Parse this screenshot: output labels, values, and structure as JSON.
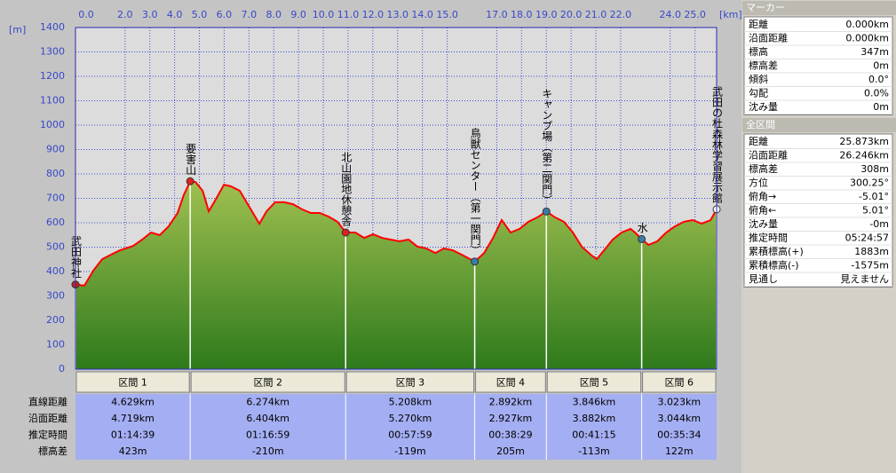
{
  "chart_data": {
    "type": "area",
    "x_label": "[km]",
    "y_label": "[m]",
    "color": "#ff0000",
    "grid": true,
    "x": [
      0,
      0.36,
      0.72,
      1.08,
      1.43,
      1.79,
      2.33,
      2.69,
      3.05,
      3.4,
      3.76,
      4.12,
      4.37,
      4.629,
      4.84,
      5.13,
      5.38,
      5.66,
      5.99,
      6.27,
      6.63,
      6.99,
      7.42,
      7.71,
      8.06,
      8.42,
      8.78,
      9.14,
      9.5,
      9.86,
      10.22,
      10.57,
      10.903,
      11.29,
      11.65,
      12.01,
      12.37,
      12.72,
      13.08,
      13.44,
      13.8,
      14.16,
      14.52,
      14.87,
      15.23,
      15.59,
      16.111,
      16.49,
      16.85,
      17.2,
      17.56,
      17.92,
      18.28,
      18.64,
      19.003,
      19.35,
      19.71,
      20.07,
      20.43,
      20.79,
      21.04,
      21.33,
      21.68,
      22.04,
      22.4,
      22.58,
      22.849,
      23.12,
      23.48,
      23.84,
      24.19,
      24.55,
      24.91,
      25.27,
      25.63,
      25.873
    ],
    "values": [
      347,
      342,
      404,
      451,
      469,
      487,
      505,
      531,
      560,
      549,
      585,
      640,
      713,
      770,
      767,
      731,
      647,
      695,
      756,
      749,
      731,
      669,
      596,
      647,
      684,
      684,
      676,
      655,
      640,
      640,
      625,
      604,
      560,
      560,
      538,
      553,
      538,
      531,
      524,
      531,
      502,
      495,
      476,
      495,
      487,
      469,
      441,
      476,
      538,
      611,
      560,
      575,
      604,
      622,
      646,
      622,
      604,
      560,
      502,
      469,
      451,
      487,
      531,
      560,
      575,
      560,
      533,
      509,
      524,
      560,
      585,
      604,
      611,
      596,
      611,
      655
    ],
    "xlim": [
      0,
      25.873
    ],
    "ylim": [
      0,
      1400
    ],
    "xticks": [
      {
        "value": 0,
        "label": "0.0"
      },
      {
        "value": 2,
        "label": "2.0"
      },
      {
        "value": 3,
        "label": "3.0"
      },
      {
        "value": 4,
        "label": "4.0"
      },
      {
        "value": 5,
        "label": "5.0"
      },
      {
        "value": 6,
        "label": "6.0"
      },
      {
        "value": 7,
        "label": "7.0"
      },
      {
        "value": 8,
        "label": "8.0"
      },
      {
        "value": 9,
        "label": "9.0"
      },
      {
        "value": 10,
        "label": "10.0"
      },
      {
        "value": 11,
        "label": "11.0"
      },
      {
        "value": 12,
        "label": "12.0"
      },
      {
        "value": 13,
        "label": "13.0"
      },
      {
        "value": 14,
        "label": "14.0"
      },
      {
        "value": 15,
        "label": "15.0"
      },
      {
        "value": 17,
        "label": "17.0"
      },
      {
        "value": 18,
        "label": "18.0"
      },
      {
        "value": 19,
        "label": "19.0"
      },
      {
        "value": 20,
        "label": "20.0"
      },
      {
        "value": 21,
        "label": "21.0"
      },
      {
        "value": 22,
        "label": "22.0"
      },
      {
        "value": 24,
        "label": "24.0"
      },
      {
        "value": 25,
        "label": "25.0"
      }
    ],
    "yticks": [
      0,
      100,
      200,
      300,
      400,
      500,
      600,
      700,
      800,
      900,
      1000,
      1100,
      1200,
      1300,
      1400
    ],
    "markers": [
      {
        "label": "武田神社",
        "x": 0,
        "elevation": 347,
        "color": "#c02020"
      },
      {
        "label": "要害山",
        "x": 4.629,
        "elevation": 770,
        "color": "#e02020"
      },
      {
        "label": "北山園地休憩舎",
        "x": 10.903,
        "elevation": 560,
        "color": "#e02020"
      },
      {
        "label": "鳥獣センター（第一関門）",
        "x": 16.111,
        "elevation": 441,
        "color": "#3a7ca8"
      },
      {
        "label": "キャンプ場（第二関門）",
        "x": 19.003,
        "elevation": 646,
        "color": "#3a7ca8"
      },
      {
        "label": "水",
        "x": 22.849,
        "elevation": 533,
        "color": "#3a7ca8"
      },
      {
        "label": "武田の杜森林学習展示館",
        "x": 25.873,
        "elevation": 655,
        "color": "#ffffff"
      }
    ]
  },
  "sections": {
    "headers": [
      "区間 1",
      "区間 2",
      "区間 3",
      "区間 4",
      "区間 5",
      "区間 6"
    ],
    "row_labels": [
      "直線距離",
      "沿面距離",
      "推定時間",
      "標高差"
    ],
    "rows": [
      [
        "4.629km",
        "6.274km",
        "5.208km",
        "2.892km",
        "3.846km",
        "3.023km"
      ],
      [
        "4.719km",
        "6.404km",
        "5.270km",
        "2.927km",
        "3.882km",
        "3.044km"
      ],
      [
        "01:14:39",
        "01:16:59",
        "00:57:59",
        "00:38:29",
        "00:41:15",
        "00:35:34"
      ],
      [
        "423m",
        "-210m",
        "-119m",
        "205m",
        "-113m",
        "122m"
      ]
    ]
  },
  "marker_panel": {
    "title": "マーカー",
    "rows": [
      [
        "距離",
        "0.000km"
      ],
      [
        "沿面距離",
        "0.000km"
      ],
      [
        "標高",
        "347m"
      ],
      [
        "標高差",
        "0m"
      ],
      [
        "傾斜",
        "0.0°"
      ],
      [
        "勾配",
        "0.0%"
      ],
      [
        "沈み量",
        "0m"
      ]
    ]
  },
  "total_panel": {
    "title": "全区間",
    "rows": [
      [
        "距離",
        "25.873km"
      ],
      [
        "沿面距離",
        "26.246km"
      ],
      [
        "標高差",
        "308m"
      ],
      [
        "方位",
        "300.25°"
      ],
      [
        "俯角→",
        "-5.01°"
      ],
      [
        "俯角←",
        "5.01°"
      ],
      [
        "沈み量",
        "-0m"
      ],
      [
        "推定時間",
        "05:24:57"
      ],
      [
        "累積標高(+)",
        "1883m"
      ],
      [
        "累積標高(-)",
        "-1575m"
      ],
      [
        "見通し",
        "見えません"
      ]
    ]
  }
}
